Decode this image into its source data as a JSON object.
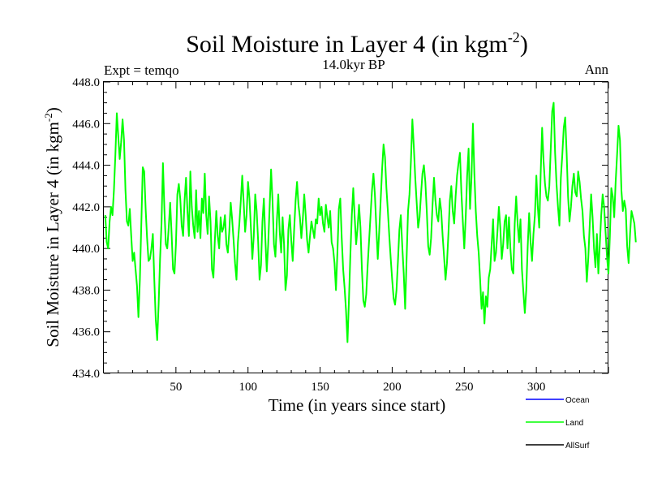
{
  "chart_data": {
    "type": "line",
    "title": {
      "main": "Soil Moisture in Layer 4 (in kgm",
      "sup": "-2",
      "close": ")"
    },
    "subtitle_left": "Expt = temqo",
    "subtitle_center": "14.0kyr BP",
    "subtitle_right": "Ann",
    "xlabel": "Time (in years since start)",
    "ylabel": {
      "main": "Soil Moisture in Layer 4 (in kgm",
      "sup": "-2",
      "close": ")"
    },
    "xlim": [
      0,
      350
    ],
    "ylim": [
      434.0,
      448.0
    ],
    "xticks": [
      50,
      100,
      150,
      200,
      250,
      300
    ],
    "xtick_labels": [
      "50",
      "100",
      "150",
      "200",
      "250",
      "300"
    ],
    "yticks": [
      434,
      436,
      438,
      440,
      442,
      444,
      446,
      448
    ],
    "ytick_labels": [
      "434.0",
      "436.0",
      "438.0",
      "440.0",
      "442.0",
      "444.0",
      "446.0",
      "448.0"
    ],
    "legend": [
      {
        "name": "Ocean",
        "color": "#0000ff"
      },
      {
        "name": "Land",
        "color": "#00ff00"
      },
      {
        "name": "AllSurf",
        "color": "#000000"
      }
    ],
    "series": [
      {
        "name": "Land",
        "color": "#00ff00",
        "x_start": 1,
        "x_step": 1,
        "values": [
          441.6,
          440.3,
          440.0,
          441.3,
          442.0,
          441.6,
          442.8,
          444.5,
          446.5,
          445.4,
          444.3,
          445.1,
          446.2,
          445.2,
          442.8,
          441.3,
          441.1,
          441.9,
          440.6,
          439.4,
          439.8,
          439.0,
          438.2,
          436.7,
          438.5,
          441.2,
          443.9,
          443.7,
          441.9,
          440.5,
          439.4,
          439.5,
          440.0,
          440.7,
          438.5,
          436.6,
          435.6,
          437.3,
          439.5,
          441.2,
          444.1,
          441.9,
          440.2,
          440.0,
          441.0,
          442.2,
          440.7,
          439.0,
          438.8,
          440.2,
          442.6,
          443.1,
          442.4,
          441.1,
          440.6,
          442.3,
          443.4,
          441.8,
          440.6,
          443.7,
          442.0,
          441.1,
          440.5,
          442.8,
          440.8,
          441.8,
          440.5,
          442.4,
          441.7,
          443.6,
          441.6,
          440.7,
          442.5,
          441.3,
          439.0,
          438.6,
          440.4,
          441.8,
          440.6,
          440.0,
          441.5,
          440.8,
          441.0,
          441.6,
          440.2,
          439.8,
          440.8,
          442.2,
          441.4,
          440.4,
          439.3,
          438.5,
          440.3,
          441.2,
          442.3,
          443.5,
          442.2,
          440.8,
          441.6,
          443.2,
          442.4,
          441.0,
          439.5,
          440.6,
          442.6,
          441.8,
          440.4,
          438.5,
          439.2,
          441.3,
          442.4,
          440.5,
          438.9,
          440.2,
          442.0,
          443.8,
          442.3,
          440.2,
          439.6,
          441.3,
          442.6,
          440.8,
          439.8,
          441.5,
          440.2,
          438.0,
          438.7,
          440.9,
          441.6,
          440.4,
          439.4,
          440.9,
          442.3,
          443.2,
          442.1,
          441.5,
          440.5,
          441.4,
          442.6,
          441.6,
          440.4,
          439.8,
          440.6,
          441.3,
          440.9,
          440.5,
          441.4,
          441.2,
          442.4,
          441.6,
          442.0,
          441.2,
          440.8,
          442.1,
          441.5,
          441.0,
          441.8,
          440.3,
          440.0,
          439.3,
          438.0,
          439.8,
          441.9,
          442.4,
          440.5,
          439.0,
          438.1,
          437.0,
          435.5,
          437.5,
          439.7,
          441.6,
          442.9,
          441.5,
          440.2,
          441.0,
          442.1,
          441.0,
          439.0,
          437.5,
          437.2,
          437.8,
          439.2,
          440.4,
          441.6,
          442.8,
          443.6,
          442.6,
          441.0,
          439.5,
          440.8,
          442.3,
          443.8,
          445.0,
          444.4,
          442.9,
          441.8,
          440.6,
          439.5,
          438.5,
          437.6,
          437.3,
          438.0,
          439.4,
          440.9,
          441.6,
          440.1,
          438.8,
          437.1,
          439.5,
          441.8,
          442.6,
          444.2,
          446.2,
          444.9,
          443.4,
          442.2,
          441.0,
          441.5,
          442.6,
          443.6,
          444.0,
          443.2,
          441.8,
          440.1,
          439.7,
          440.5,
          442.1,
          443.4,
          442.3,
          441.6,
          441.3,
          442.4,
          441.8,
          440.6,
          439.6,
          438.5,
          439.3,
          440.7,
          442.3,
          443.0,
          441.8,
          441.2,
          442.5,
          443.5,
          444.1,
          444.6,
          442.7,
          441.3,
          440.0,
          441.5,
          443.5,
          444.8,
          441.9,
          443.4,
          446.0,
          443.6,
          441.8,
          440.6,
          439.8,
          438.5,
          437.1,
          437.9,
          436.4,
          437.7,
          437.2,
          438.6,
          439.0,
          440.2,
          441.4,
          439.4,
          439.8,
          440.8,
          442.0,
          441.0,
          439.5,
          440.2,
          441.3,
          441.6,
          440.0,
          441.5,
          440.0,
          439.0,
          438.8,
          441.2,
          442.5,
          441.2,
          440.3,
          441.4,
          439.0,
          437.9,
          436.9,
          438.0,
          440.1,
          441.7,
          440.3,
          439.4,
          440.7,
          441.6,
          443.5,
          442.0,
          441.0,
          443.6,
          445.8,
          444.2,
          443.1,
          442.5,
          442.3,
          443.0,
          444.8,
          446.6,
          447.0,
          444.6,
          443.1,
          442.0,
          441.1,
          443.4,
          444.5,
          445.8,
          446.3,
          444.6,
          442.5,
          441.3,
          442.0,
          443.0,
          443.6,
          442.7,
          442.5,
          443.7,
          443.2,
          442.4,
          441.8,
          440.6,
          440.0,
          438.4,
          439.5,
          441.1,
          442.6,
          441.5,
          440.0,
          439.1,
          440.7,
          438.8,
          440.2,
          441.6,
          442.6,
          442.0,
          440.8,
          439.6,
          438.8,
          440.6,
          442.9,
          442.5,
          441.5,
          443.2,
          444.5,
          445.9,
          445.2,
          442.8,
          441.8,
          442.3,
          441.9,
          440.1,
          439.3,
          440.7,
          441.8,
          441.5,
          441.2,
          440.3
        ]
      }
    ]
  }
}
